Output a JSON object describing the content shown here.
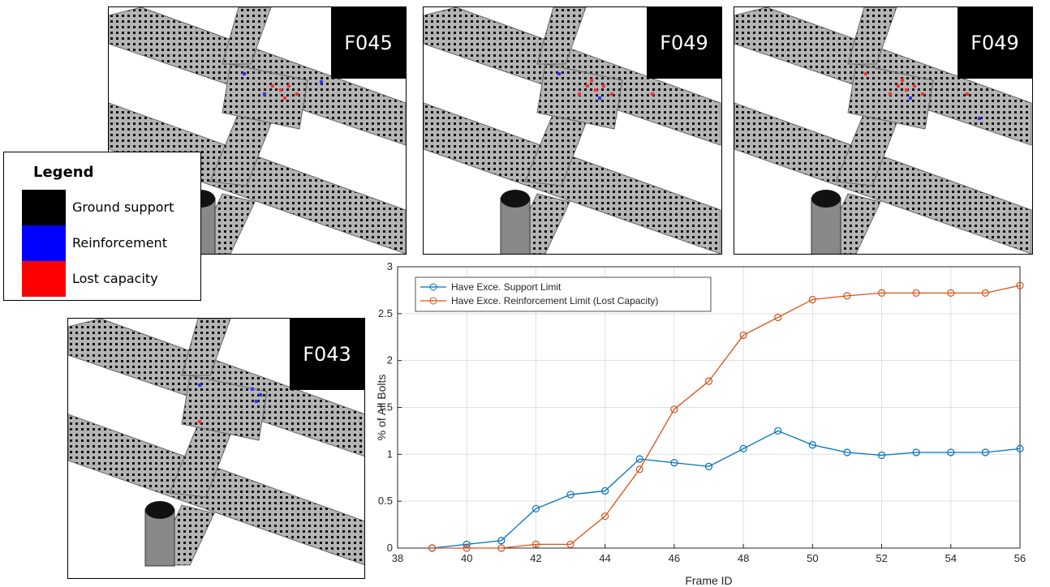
{
  "panels": [
    {
      "label": "F045"
    },
    {
      "label": "F049"
    },
    {
      "label": "F049"
    },
    {
      "label": "F043"
    }
  ],
  "legend": {
    "title": "Legend",
    "items": [
      {
        "label": "Ground support",
        "color": "#000000"
      },
      {
        "label": "Reinforcement",
        "color": "#0000ff"
      },
      {
        "label": "Lost capacity",
        "color": "#ff0000"
      }
    ]
  },
  "chart_data": {
    "type": "line",
    "xlabel": "Frame ID",
    "ylabel": "% of All Bolts",
    "x": [
      39,
      40,
      41,
      42,
      43,
      44,
      45,
      46,
      47,
      48,
      49,
      50,
      51,
      52,
      53,
      54,
      55,
      56
    ],
    "series": [
      {
        "name": "Have Exce. Support Limit",
        "color": "#0072bd",
        "values": [
          0,
          0.04,
          0.08,
          0.42,
          0.57,
          0.61,
          0.95,
          0.91,
          0.87,
          1.06,
          1.25,
          1.1,
          1.02,
          0.99,
          1.02,
          1.02,
          1.02,
          1.06
        ]
      },
      {
        "name": "Have Exce. Reinforcement Limit (Lost Capacity)",
        "color": "#d95319",
        "values": [
          0,
          0,
          0,
          0.04,
          0.04,
          0.34,
          0.84,
          1.48,
          1.78,
          2.27,
          2.46,
          2.65,
          2.69,
          2.72,
          2.72,
          2.72,
          2.72,
          2.8
        ]
      }
    ],
    "xlim": [
      38,
      56
    ],
    "xticks": [
      38,
      40,
      42,
      44,
      46,
      48,
      50,
      52,
      54,
      56
    ],
    "ylim": [
      0,
      3
    ],
    "yticks": [
      0,
      0.5,
      1,
      1.5,
      2,
      2.5,
      3
    ],
    "grid": true,
    "legend": "upper left"
  }
}
